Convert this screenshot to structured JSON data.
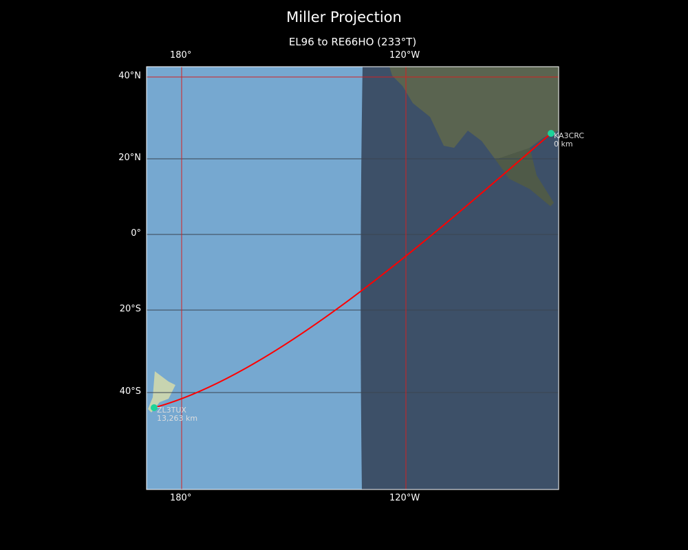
{
  "title": "Miller Projection",
  "subtitle": "EL96 to RE66HO (233°T)",
  "lon_labels": [
    "180°",
    "120°W"
  ],
  "lat_labels": [
    "40°N",
    "20°N",
    "0°",
    "20°S",
    "40°S"
  ],
  "stations": [
    {
      "call": "KA3CRC",
      "distance": "0 km"
    },
    {
      "call": "ZL3TUX",
      "distance": "13,263 km"
    }
  ],
  "colors": {
    "path": "#ff0000",
    "station_marker": "#1dd39a",
    "meridian": "#d42020",
    "parallel": "#3a4450",
    "ocean_day": "#76a8d0",
    "ocean_night": "#3d5068"
  }
}
